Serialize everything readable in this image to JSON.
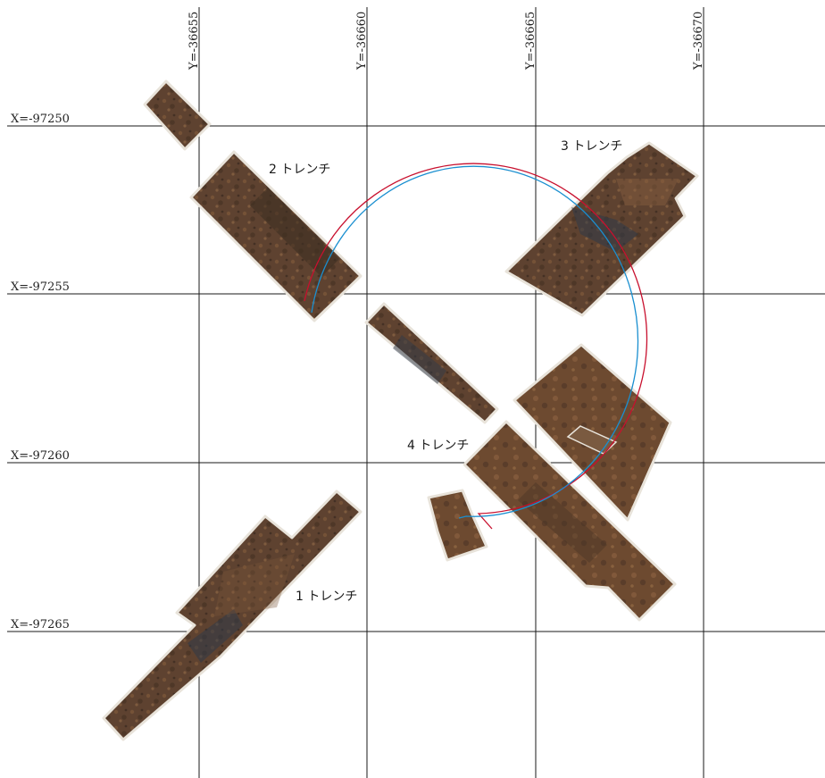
{
  "grid": {
    "y_lines": [
      "Y=-36655",
      "Y=-36660",
      "Y=-36665",
      "Y=-36670"
    ],
    "x_lines": [
      "X=-97250",
      "X=-97255",
      "X=-97260",
      "X=-97265"
    ]
  },
  "trenches": [
    {
      "id": "t1",
      "label": "1 トレンチ"
    },
    {
      "id": "t2",
      "label": "2 トレンチ"
    },
    {
      "id": "t3",
      "label": "3 トレンチ"
    },
    {
      "id": "t4",
      "label": "4 トレンチ"
    }
  ],
  "arcs": {
    "outer_color": "#c8102e",
    "inner_color": "#1a8fd0"
  },
  "colors": {
    "soil_dark": "#4a3526",
    "soil_mid": "#6b4a30",
    "soil_light": "#8a6040",
    "soil_blue": "#2f3a48",
    "edge": "#e8e3da"
  }
}
